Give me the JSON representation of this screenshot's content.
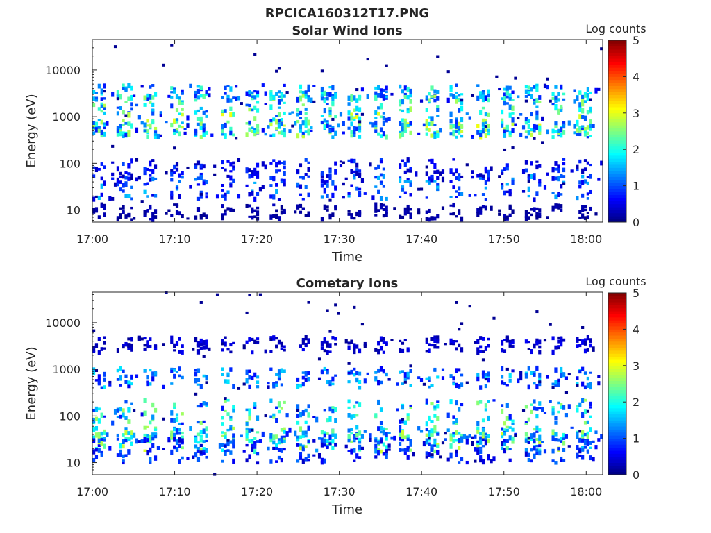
{
  "figure": {
    "title": "RPCICA160312T17.PNG"
  },
  "chart_data": [
    {
      "type": "heatmap",
      "title": "Solar Wind Ions",
      "xlabel": "Time",
      "ylabel": "Energy (eV)",
      "x_ticks": [
        "17:00",
        "17:10",
        "17:20",
        "17:30",
        "17:40",
        "17:50",
        "18:00"
      ],
      "xlim": [
        "17:00",
        "18:02"
      ],
      "y_scale": "log",
      "y_ticks": [
        10,
        100,
        1000,
        10000
      ],
      "y_tick_labels": [
        "10",
        "100",
        "1000",
        "10000"
      ],
      "ylim": [
        5.5,
        45000
      ],
      "colorbar": {
        "label": "Log counts",
        "range": [
          0,
          5
        ],
        "ticks": [
          "0",
          "1",
          "2",
          "3",
          "4",
          "5"
        ],
        "colormap": "jet"
      },
      "bands": [
        {
          "energy_ev": 3300,
          "max_log_counts": 2.4
        },
        {
          "energy_ev": 1800,
          "max_log_counts": 2.8
        },
        {
          "energy_ev": 650,
          "max_log_counts": 3.1
        },
        {
          "energy_ev": 520,
          "max_log_counts": 2.9
        },
        {
          "energy_ev": 75,
          "max_log_counts": 1.0
        },
        {
          "energy_ev": 30,
          "max_log_counts": 1.6
        },
        {
          "energy_ev": 9,
          "max_log_counts": 0.3
        }
      ],
      "cycle_period_min": 3.1
    },
    {
      "type": "heatmap",
      "title": "Cometary Ions",
      "xlabel": "Time",
      "ylabel": "Energy (eV)",
      "x_ticks": [
        "17:00",
        "17:10",
        "17:20",
        "17:30",
        "17:40",
        "17:50",
        "18:00"
      ],
      "xlim": [
        "17:00",
        "18:02"
      ],
      "y_scale": "log",
      "y_ticks": [
        10,
        100,
        1000,
        10000
      ],
      "y_tick_labels": [
        "10",
        "100",
        "1000",
        "10000"
      ],
      "ylim": [
        5.5,
        45000
      ],
      "colorbar": {
        "label": "Log counts",
        "range": [
          0,
          5
        ],
        "ticks": [
          "0",
          "1",
          "2",
          "3",
          "4",
          "5"
        ],
        "colormap": "jet"
      },
      "bands": [
        {
          "energy_ev": 3300,
          "max_log_counts": 0.6
        },
        {
          "energy_ev": 650,
          "max_log_counts": 1.8
        },
        {
          "energy_ev": 120,
          "max_log_counts": 2.7
        },
        {
          "energy_ev": 40,
          "max_log_counts": 2.8
        },
        {
          "energy_ev": 28,
          "max_log_counts": 3.0
        },
        {
          "energy_ev": 18,
          "max_log_counts": 1.2
        }
      ],
      "cycle_period_min": 3.1
    }
  ]
}
